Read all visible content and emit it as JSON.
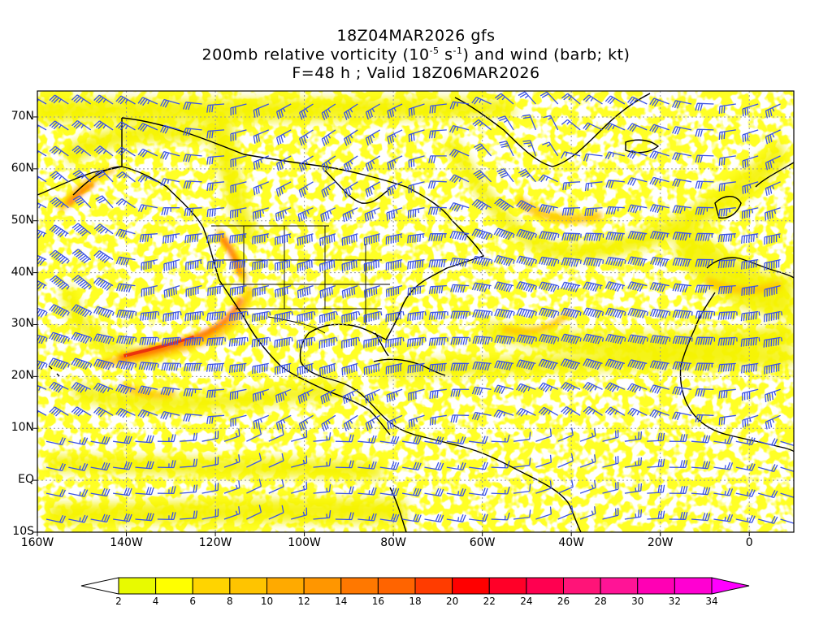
{
  "title": {
    "line1": "18Z04MAR2026 gfs",
    "line2_pre": "200mb relative vorticity (10",
    "line2_exp1": "-5",
    "line2_mid": " s",
    "line2_exp2": "-1",
    "line2_post": ") and wind (barb; kt)",
    "line3": "F=48 h ; Valid 18Z06MAR2026"
  },
  "axes": {
    "lat_ticks": [
      {
        "value": 70,
        "label": "70N"
      },
      {
        "value": 60,
        "label": "60N"
      },
      {
        "value": 50,
        "label": "50N"
      },
      {
        "value": 40,
        "label": "40N"
      },
      {
        "value": 30,
        "label": "30N"
      },
      {
        "value": 20,
        "label": "20N"
      },
      {
        "value": 10,
        "label": "10N"
      },
      {
        "value": 0,
        "label": "EQ"
      },
      {
        "value": -10,
        "label": "10S"
      }
    ],
    "lon_ticks": [
      {
        "value": -160,
        "label": "160W"
      },
      {
        "value": -140,
        "label": "140W"
      },
      {
        "value": -120,
        "label": "120W"
      },
      {
        "value": -100,
        "label": "100W"
      },
      {
        "value": -80,
        "label": "80W"
      },
      {
        "value": -60,
        "label": "60W"
      },
      {
        "value": -40,
        "label": "40W"
      },
      {
        "value": -20,
        "label": "20W"
      },
      {
        "value": 0,
        "label": "0"
      }
    ],
    "lon_range": [
      -160,
      10
    ],
    "lat_range": [
      -10,
      75
    ],
    "grid": "dotted"
  },
  "colorbar": {
    "levels": [
      2,
      4,
      6,
      8,
      10,
      12,
      14,
      16,
      18,
      20,
      22,
      24,
      26,
      28,
      30,
      32,
      34
    ],
    "colors": [
      "#e8fa00",
      "#ffff00",
      "#ffd400",
      "#ffc400",
      "#ffaa00",
      "#ff9600",
      "#ff7800",
      "#ff6400",
      "#ff3c00",
      "#ff0000",
      "#ff0028",
      "#ff0050",
      "#ff1478",
      "#ff1496",
      "#ff00b4",
      "#ff00d2"
    ],
    "under_color": "#ffffff",
    "over_color": "#ff00ff"
  },
  "colors": {
    "barb": "#3a52e6",
    "coast": "#000000",
    "vort_low": "#f0f000",
    "vort_mid": "#ffd000",
    "vort_high": "#ff8000",
    "vort_peak": "#f03010"
  }
}
